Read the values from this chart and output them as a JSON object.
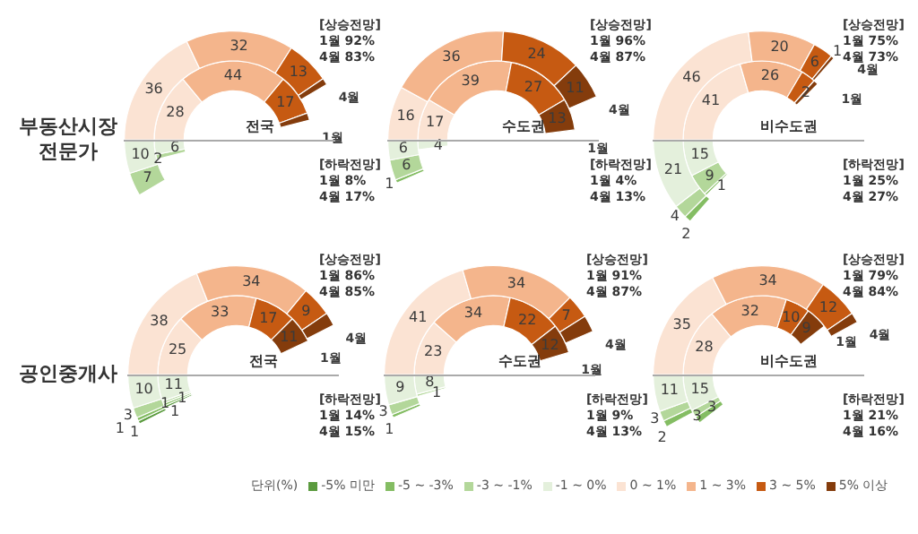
{
  "chart_data": [
    {
      "type": "donut",
      "title": "전국",
      "ylabel": "부동산시장\n전문가",
      "legend": false,
      "categories": [
        null,
        null,
        null,
        null,
        null,
        null,
        null,
        null
      ],
      "colors": [
        "#5b9b3f",
        "#84bd63",
        "#b3d79a",
        "#e4f0dc",
        "#fbe3d3",
        "#f4b58c",
        "#c65a12",
        "#843c0c"
      ],
      "series": [
        {
          "name": "4월",
          "values": [
            0,
            0,
            7,
            10,
            36,
            32,
            13,
            2
          ],
          "value_labels": [
            null,
            null,
            "7",
            "10",
            "36",
            "32",
            "13",
            null
          ]
        },
        {
          "name": "1월",
          "values": [
            0,
            0,
            2,
            6,
            28,
            44,
            17,
            3
          ],
          "value_labels": [
            null,
            null,
            "2",
            "6",
            "28",
            "44",
            "17",
            null
          ]
        }
      ],
      "annotations": [
        "[상승전망]\n1월 92%\n4월 83%",
        "[하락전망]\n1월 8%\n4월 17%"
      ]
    },
    {
      "type": "donut",
      "title": "수도권",
      "legend": false,
      "categories": [
        null,
        null,
        null,
        null,
        null,
        null,
        null,
        null
      ],
      "colors": [
        "#5b9b3f",
        "#84bd63",
        "#b3d79a",
        "#e4f0dc",
        "#fbe3d3",
        "#f4b58c",
        "#c65a12",
        "#843c0c"
      ],
      "series": [
        {
          "name": "4월",
          "values": [
            0,
            1,
            6,
            6,
            16,
            36,
            24,
            11
          ],
          "value_labels": [
            null,
            "1",
            "6",
            "6",
            "16",
            "36",
            "24",
            "11"
          ]
        },
        {
          "name": "1월",
          "values": [
            0,
            0,
            0,
            4,
            17,
            39,
            27,
            13
          ],
          "value_labels": [
            null,
            null,
            null,
            "4",
            "17",
            "39",
            "27",
            "13"
          ]
        }
      ],
      "annotations": [
        "[상승전망]\n1월 96%\n4월 87%",
        "[하락전망]\n1월 4%\n4월 13%"
      ]
    },
    {
      "type": "donut",
      "title": "비수도권",
      "legend": false,
      "categories": [
        null,
        null,
        null,
        null,
        null,
        null,
        null,
        null
      ],
      "colors": [
        "#5b9b3f",
        "#84bd63",
        "#b3d79a",
        "#e4f0dc",
        "#fbe3d3",
        "#f4b58c",
        "#c65a12",
        "#843c0c"
      ],
      "series": [
        {
          "name": "4월",
          "values": [
            0,
            2,
            4,
            21,
            46,
            20,
            6,
            1
          ],
          "value_labels": [
            null,
            "2",
            "4",
            "21",
            "46",
            "20",
            "6",
            "1"
          ]
        },
        {
          "name": "1월",
          "values": [
            0,
            1,
            9,
            15,
            41,
            26,
            6,
            2
          ],
          "value_labels": [
            null,
            "1",
            "9",
            "15",
            "41",
            "26",
            null,
            "2"
          ]
        }
      ],
      "annotations": [
        "[상승전망]\n1월 75%\n4월 73%",
        "[하락전망]\n1월 25%\n4월 27%"
      ]
    },
    {
      "type": "donut",
      "title": "전국",
      "ylabel": "공인중개사",
      "legend": false,
      "categories": [
        null,
        null,
        null,
        null,
        null,
        null,
        null,
        null
      ],
      "colors": [
        "#5b9b3f",
        "#84bd63",
        "#b3d79a",
        "#e4f0dc",
        "#fbe3d3",
        "#f4b58c",
        "#c65a12",
        "#843c0c"
      ],
      "series": [
        {
          "name": "4월",
          "values": [
            1,
            1,
            3,
            10,
            38,
            34,
            9,
            4
          ],
          "value_labels": [
            "1",
            "1",
            "3",
            "10",
            "38",
            "34",
            "9",
            null
          ]
        },
        {
          "name": "1월",
          "values": [
            1,
            1,
            1,
            11,
            25,
            33,
            17,
            11
          ],
          "value_labels": [
            "1",
            "1",
            "1",
            "11",
            "25",
            "33",
            "17",
            "11"
          ]
        }
      ],
      "annotations": [
        "[상승전망]\n1월 86%\n4월 85%",
        "[하락전망]\n1월 14%\n4월 15%"
      ]
    },
    {
      "type": "donut",
      "title": "수도권",
      "legend": false,
      "categories": [
        null,
        null,
        null,
        null,
        null,
        null,
        null,
        null
      ],
      "colors": [
        "#5b9b3f",
        "#84bd63",
        "#b3d79a",
        "#e4f0dc",
        "#fbe3d3",
        "#f4b58c",
        "#c65a12",
        "#843c0c"
      ],
      "series": [
        {
          "name": "4월",
          "values": [
            0,
            1,
            3,
            9,
            41,
            34,
            7,
            5
          ],
          "value_labels": [
            null,
            "1",
            "3",
            "9",
            "41",
            "34",
            "7",
            null
          ]
        },
        {
          "name": "1월",
          "values": [
            0,
            0,
            1,
            8,
            23,
            34,
            22,
            12
          ],
          "value_labels": [
            null,
            null,
            "1",
            "8",
            "23",
            "34",
            "22",
            "12"
          ]
        }
      ],
      "annotations": [
        "[상승전망]\n1월 91%\n4월 87%",
        "[하락전망]\n1월 9%\n4월 13%"
      ]
    },
    {
      "type": "donut",
      "title": "비수도권",
      "legend": "bottom",
      "legend_title": "단위(%)",
      "categories": [
        "-5% 미만",
        "-5 ~ -3%",
        "-3 ~ -1%",
        "-1 ~ 0%",
        "0 ~ 1%",
        "1 ~ 3%",
        "3 ~ 5%",
        "5% 이상"
      ],
      "colors": [
        "#5b9b3f",
        "#84bd63",
        "#b3d79a",
        "#e4f0dc",
        "#fbe3d3",
        "#f4b58c",
        "#c65a12",
        "#843c0c"
      ],
      "series": [
        {
          "name": "4월",
          "values": [
            0,
            2,
            3,
            11,
            35,
            34,
            12,
            3
          ],
          "value_labels": [
            null,
            "2",
            "3",
            "11",
            "35",
            "34",
            "12",
            null
          ]
        },
        {
          "name": "1월",
          "values": [
            0,
            3,
            3,
            15,
            28,
            32,
            10,
            9
          ],
          "value_labels": [
            null,
            "3",
            "3",
            "15",
            "28",
            "32",
            "10",
            "9"
          ]
        }
      ],
      "annotations": [
        "[상승전망]\n1월 79%\n4월 84%",
        "[하락전망]\n1월 21%\n4월 16%"
      ]
    }
  ]
}
